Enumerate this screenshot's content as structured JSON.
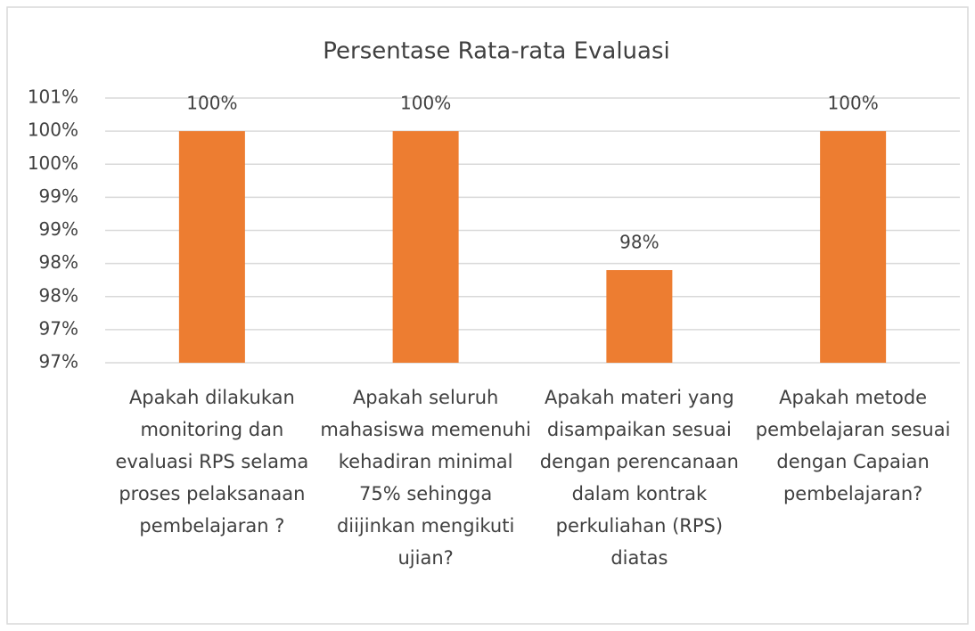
{
  "chart_data": {
    "type": "bar",
    "title": "Persentase Rata-rata Evaluasi",
    "categories": [
      "Apakah dilakukan monitoring dan evaluasi RPS selama proses pelaksanaan pembelajaran ?",
      "Apakah seluruh mahasiswa memenuhi kehadiran minimal 75% sehingga diijinkan mengikuti ujian?",
      "Apakah materi yang disampaikan sesuai dengan perencanaan dalam kontrak perkuliahan (RPS) diatas",
      "Apakah metode pembelajaran sesuai dengan Capaian pembelajaran?"
    ],
    "values": [
      100,
      100,
      97.9,
      100
    ],
    "value_labels": [
      "100%",
      "100%",
      "98%",
      "100%"
    ],
    "color": "#ed7d31",
    "ylim": [
      96.5,
      100.5
    ],
    "yticks": [
      {
        "value": 96.5,
        "label": "97%"
      },
      {
        "value": 97,
        "label": "97%"
      },
      {
        "value": 97.5,
        "label": "98%"
      },
      {
        "value": 98,
        "label": "98%"
      },
      {
        "value": 98.5,
        "label": "99%"
      },
      {
        "value": 99,
        "label": "99%"
      },
      {
        "value": 99.5,
        "label": "100%"
      },
      {
        "value": 100,
        "label": "100%"
      },
      {
        "value": 100.5,
        "label": "101%"
      }
    ],
    "grid": true
  }
}
